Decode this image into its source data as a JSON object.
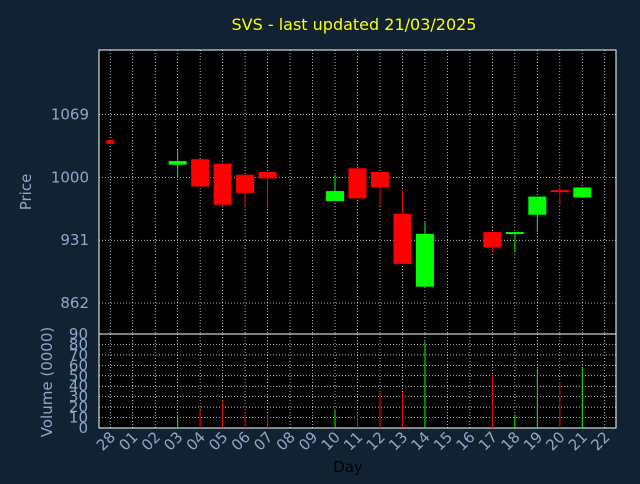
{
  "chart_data": [
    {
      "type": "candlestick",
      "title": "SVS - last updated 21/03/2025",
      "xlabel": "Day",
      "ylabel": "Price",
      "categories": [
        "28",
        "01",
        "02",
        "03",
        "04",
        "05",
        "06",
        "07",
        "08",
        "09",
        "10",
        "11",
        "12",
        "13",
        "14",
        "15",
        "16",
        "17",
        "18",
        "19",
        "20",
        "21",
        "22"
      ],
      "yticks": [
        862,
        931,
        1000,
        1069
      ],
      "ylim": [
        828,
        1140
      ],
      "grid": true,
      "colors": {
        "up": "#00ff00",
        "down": "#ff0000",
        "background": "#112233",
        "title": "#ffff00",
        "axis_text": "#8fa8c8",
        "grid": "#ffffff"
      },
      "candles": [
        {
          "day": "28",
          "open": 1041,
          "close": 1037,
          "high": 1041,
          "low": 1037
        },
        {
          "day": "03",
          "open": 1014,
          "close": 1018,
          "high": 1030,
          "low": 1000
        },
        {
          "day": "04",
          "open": 1020,
          "close": 990,
          "high": 1020,
          "low": 990
        },
        {
          "day": "05",
          "open": 1015,
          "close": 970,
          "high": 1015,
          "low": 970
        },
        {
          "day": "06",
          "open": 1003,
          "close": 983,
          "high": 1003,
          "low": 968
        },
        {
          "day": "07",
          "open": 1006,
          "close": 999,
          "high": 1006,
          "low": 966
        },
        {
          "day": "10",
          "open": 974,
          "close": 985,
          "high": 1003,
          "low": 974
        },
        {
          "day": "11",
          "open": 1010,
          "close": 977,
          "high": 1010,
          "low": 977
        },
        {
          "day": "12",
          "open": 1006,
          "close": 989,
          "high": 1006,
          "low": 969
        },
        {
          "day": "13",
          "open": 960,
          "close": 905,
          "high": 986,
          "low": 905
        },
        {
          "day": "14",
          "open": 880,
          "close": 938,
          "high": 952,
          "low": 880
        },
        {
          "day": "17",
          "open": 940,
          "close": 923,
          "high": 940,
          "low": 918
        },
        {
          "day": "18",
          "open": 938,
          "close": 940,
          "high": 940,
          "low": 919
        },
        {
          "day": "19",
          "open": 959,
          "close": 979,
          "high": 979,
          "low": 940
        },
        {
          "day": "20",
          "open": 986,
          "close": 984,
          "high": 990,
          "low": 971
        },
        {
          "day": "21",
          "open": 978,
          "close": 989,
          "high": 989,
          "low": 978
        }
      ]
    },
    {
      "type": "bar",
      "ylabel": "Volume (0000)",
      "yticks": [
        0,
        10,
        20,
        30,
        40,
        50,
        60,
        70,
        80,
        90
      ],
      "ylim": [
        0,
        90
      ],
      "grid": true,
      "bars": [
        {
          "day": "03",
          "value": 12,
          "color": "#00ff00"
        },
        {
          "day": "04",
          "value": 17,
          "color": "#ff0000"
        },
        {
          "day": "05",
          "value": 25,
          "color": "#ff0000"
        },
        {
          "day": "06",
          "value": 15,
          "color": "#ff0000"
        },
        {
          "day": "07",
          "value": 12,
          "color": "#ff0000"
        },
        {
          "day": "10",
          "value": 17,
          "color": "#00ff00"
        },
        {
          "day": "11",
          "value": 14,
          "color": "#ff0000"
        },
        {
          "day": "12",
          "value": 34,
          "color": "#ff0000"
        },
        {
          "day": "13",
          "value": 34,
          "color": "#ff0000"
        },
        {
          "day": "14",
          "value": 83,
          "color": "#00ff00"
        },
        {
          "day": "17",
          "value": 50,
          "color": "#ff0000"
        },
        {
          "day": "18",
          "value": 13,
          "color": "#00ff00"
        },
        {
          "day": "19",
          "value": 57,
          "color": "#00ff00"
        },
        {
          "day": "20",
          "value": 44,
          "color": "#ff0000"
        },
        {
          "day": "21",
          "value": 58,
          "color": "#00ff00"
        }
      ]
    }
  ]
}
